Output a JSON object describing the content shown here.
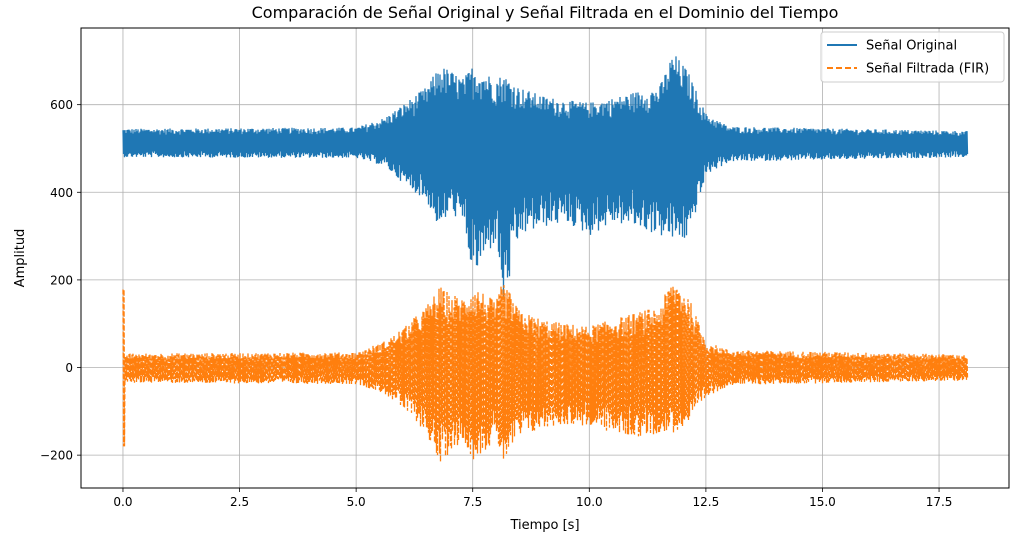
{
  "chart_data": {
    "type": "line",
    "title": "Comparación de Señal Original y Señal Filtrada en el Dominio del Tiempo",
    "xlabel": "Tiempo [s]",
    "ylabel": "Amplitud",
    "xlim": [
      -0.9,
      19.0
    ],
    "ylim": [
      -275,
      775
    ],
    "xticks": [
      0.0,
      2.5,
      5.0,
      7.5,
      10.0,
      12.5,
      15.0,
      17.5
    ],
    "xtick_labels": [
      "0.0",
      "2.5",
      "5.0",
      "7.5",
      "10.0",
      "12.5",
      "15.0",
      "17.5"
    ],
    "yticks": [
      -200,
      0,
      200,
      400,
      600
    ],
    "ytick_labels": [
      "−200",
      "0",
      "200",
      "400",
      "600"
    ],
    "grid": true,
    "legend_position": "top-right",
    "colors": {
      "original": "#1f77b4",
      "filtered": "#ff7f0e",
      "grid": "#b0b0b0"
    },
    "series": [
      {
        "name": "Señal Original",
        "style": "solid",
        "duration_s": 18.1,
        "baseline": 512,
        "envelope": {
          "t": [
            0.0,
            5.0,
            5.6,
            6.0,
            6.5,
            6.8,
            7.0,
            7.3,
            7.5,
            8.0,
            8.15,
            8.5,
            9.0,
            9.5,
            10.0,
            10.5,
            11.0,
            11.5,
            11.8,
            12.1,
            12.5,
            13.0,
            18.1
          ],
          "upper": [
            545,
            548,
            570,
            600,
            640,
            690,
            680,
            660,
            690,
            660,
            670,
            640,
            620,
            610,
            605,
            615,
            630,
            640,
            720,
            680,
            580,
            550,
            540
          ],
          "lower": [
            480,
            478,
            460,
            420,
            380,
            310,
            360,
            320,
            205,
            290,
            140,
            300,
            320,
            330,
            300,
            330,
            320,
            300,
            290,
            290,
            440,
            470,
            480
          ]
        }
      },
      {
        "name": "Señal Filtrada (FIR)",
        "style": "dashed",
        "duration_s": 18.1,
        "baseline": 0,
        "envelope": {
          "t": [
            0.0,
            5.0,
            5.6,
            6.0,
            6.5,
            6.8,
            7.0,
            7.3,
            7.5,
            8.0,
            8.15,
            8.5,
            9.0,
            9.5,
            10.0,
            10.5,
            11.0,
            11.5,
            11.8,
            12.1,
            12.5,
            13.0,
            18.1
          ],
          "upper": [
            32,
            35,
            60,
            90,
            140,
            185,
            170,
            160,
            190,
            150,
            200,
            130,
            110,
            100,
            95,
            110,
            125,
            140,
            205,
            170,
            60,
            40,
            30
          ],
          "lower": [
            -35,
            -38,
            -60,
            -95,
            -150,
            -230,
            -190,
            -170,
            -210,
            -170,
            -215,
            -160,
            -140,
            -130,
            -135,
            -150,
            -160,
            -150,
            -150,
            -130,
            -70,
            -40,
            -30
          ]
        },
        "transient": {
          "t": 0.0,
          "max": 178,
          "min": -180
        }
      }
    ]
  }
}
